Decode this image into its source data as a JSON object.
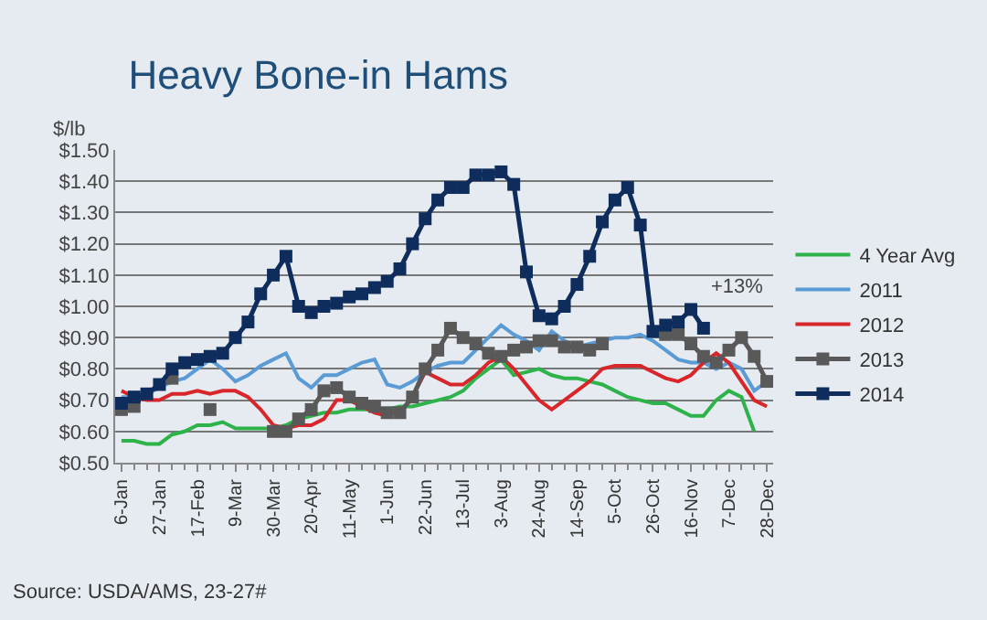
{
  "chart_data": {
    "type": "line",
    "title": "Heavy Bone-in Hams",
    "ylabel": "$/lb",
    "categories": [
      "6-Jan",
      null,
      null,
      "27-Jan",
      null,
      null,
      "17-Feb",
      null,
      null,
      "9-Mar",
      null,
      null,
      "30-Mar",
      null,
      null,
      "20-Apr",
      null,
      null,
      "11-May",
      null,
      null,
      "1-Jun",
      null,
      null,
      "22-Jun",
      null,
      null,
      "13-Jul",
      null,
      null,
      "3-Aug",
      null,
      null,
      "24-Aug",
      null,
      null,
      "14-Sep",
      null,
      null,
      "5-Oct",
      null,
      null,
      "26-Oct",
      null,
      null,
      "16-Nov",
      null,
      null,
      "7-Dec",
      null,
      null,
      "28-Dec"
    ],
    "series": [
      {
        "name": "4 Year Avg",
        "color": "#2db34a",
        "values": [
          0.57,
          0.57,
          0.56,
          0.56,
          0.59,
          0.6,
          0.62,
          0.62,
          0.63,
          0.61,
          0.61,
          0.61,
          0.61,
          0.62,
          0.64,
          0.65,
          0.66,
          0.66,
          0.67,
          0.67,
          0.67,
          0.67,
          0.68,
          0.68,
          0.69,
          0.7,
          0.71,
          0.73,
          0.77,
          0.8,
          0.83,
          0.78,
          0.79,
          0.8,
          0.78,
          0.77,
          0.77,
          0.76,
          0.75,
          0.73,
          0.71,
          0.7,
          0.69,
          0.69,
          0.67,
          0.65,
          0.65,
          0.7,
          0.73,
          0.71,
          0.6,
          null
        ]
      },
      {
        "name": "2011",
        "color": "#5b9bd5",
        "values": [
          0.71,
          0.71,
          0.72,
          0.74,
          0.76,
          0.77,
          0.8,
          0.83,
          0.8,
          0.76,
          0.78,
          0.81,
          0.83,
          0.85,
          0.77,
          0.74,
          0.78,
          0.78,
          0.8,
          0.82,
          0.83,
          0.75,
          0.74,
          0.76,
          0.79,
          0.81,
          0.82,
          0.82,
          0.86,
          0.9,
          0.94,
          0.91,
          0.89,
          0.86,
          0.92,
          0.89,
          0.87,
          0.88,
          0.89,
          0.9,
          0.9,
          0.91,
          0.89,
          0.86,
          0.83,
          0.82,
          0.82,
          0.8,
          0.82,
          0.8,
          0.73,
          0.76
        ]
      },
      {
        "name": "2012",
        "color": "#d9262a",
        "values": [
          0.73,
          0.71,
          0.7,
          0.7,
          0.72,
          0.72,
          0.73,
          0.72,
          0.73,
          0.73,
          0.71,
          0.67,
          0.62,
          0.61,
          0.62,
          0.62,
          0.64,
          0.7,
          0.7,
          0.68,
          0.66,
          0.65,
          null,
          0.71,
          0.79,
          0.77,
          0.75,
          0.75,
          0.78,
          0.82,
          0.84,
          0.8,
          0.75,
          0.7,
          0.67,
          0.7,
          0.73,
          0.76,
          0.8,
          0.81,
          0.81,
          0.81,
          0.79,
          0.77,
          0.76,
          0.78,
          0.82,
          0.85,
          0.82,
          0.76,
          0.7,
          0.68
        ]
      },
      {
        "name": "2013",
        "color": "#595959",
        "marker": "square",
        "values": [
          0.67,
          0.68,
          null,
          null,
          0.77,
          null,
          null,
          0.67,
          null,
          null,
          null,
          null,
          0.6,
          0.6,
          0.64,
          0.67,
          0.73,
          0.74,
          0.71,
          0.69,
          0.68,
          0.66,
          0.66,
          0.71,
          0.8,
          0.86,
          0.93,
          0.9,
          0.88,
          0.85,
          0.84,
          0.86,
          0.87,
          0.89,
          0.89,
          0.87,
          0.87,
          0.86,
          0.88,
          null,
          null,
          null,
          null,
          0.91,
          0.91,
          0.88,
          0.84,
          0.82,
          0.86,
          0.9,
          0.84,
          0.76
        ]
      },
      {
        "name": "2014",
        "color": "#0f2d5c",
        "marker": "square",
        "values": [
          0.69,
          0.71,
          0.72,
          0.75,
          0.8,
          0.82,
          0.83,
          0.84,
          0.85,
          0.9,
          0.95,
          1.04,
          1.1,
          1.16,
          1.0,
          0.98,
          1.0,
          1.01,
          1.03,
          1.04,
          1.06,
          1.08,
          1.12,
          1.2,
          1.28,
          1.34,
          1.38,
          1.38,
          1.42,
          1.42,
          1.43,
          1.39,
          1.11,
          0.97,
          0.96,
          1.0,
          1.07,
          1.16,
          1.27,
          1.34,
          1.38,
          1.26,
          0.92,
          0.94,
          0.95,
          0.99,
          0.93,
          null,
          null,
          null,
          null,
          null
        ]
      }
    ],
    "ylim": [
      0.5,
      1.5
    ],
    "yticks": [
      {
        "value": 0.5,
        "label": "$0.50"
      },
      {
        "value": 0.6,
        "label": "$0.60"
      },
      {
        "value": 0.7,
        "label": "$0.70"
      },
      {
        "value": 0.8,
        "label": "$0.80"
      },
      {
        "value": 0.9,
        "label": "$0.90"
      },
      {
        "value": 1.0,
        "label": "$1.00"
      },
      {
        "value": 1.1,
        "label": "$1.10"
      },
      {
        "value": 1.2,
        "label": "$1.20"
      },
      {
        "value": 1.3,
        "label": "$1.30"
      },
      {
        "value": 1.4,
        "label": "$1.40"
      },
      {
        "value": 1.5,
        "label": "$1.50"
      }
    ],
    "grid": "y",
    "legend": "right",
    "marker": "none",
    "line_style": "solid",
    "annotations": [
      "+13%",
      "Source: USDA/AMS, 23-27#"
    ]
  }
}
